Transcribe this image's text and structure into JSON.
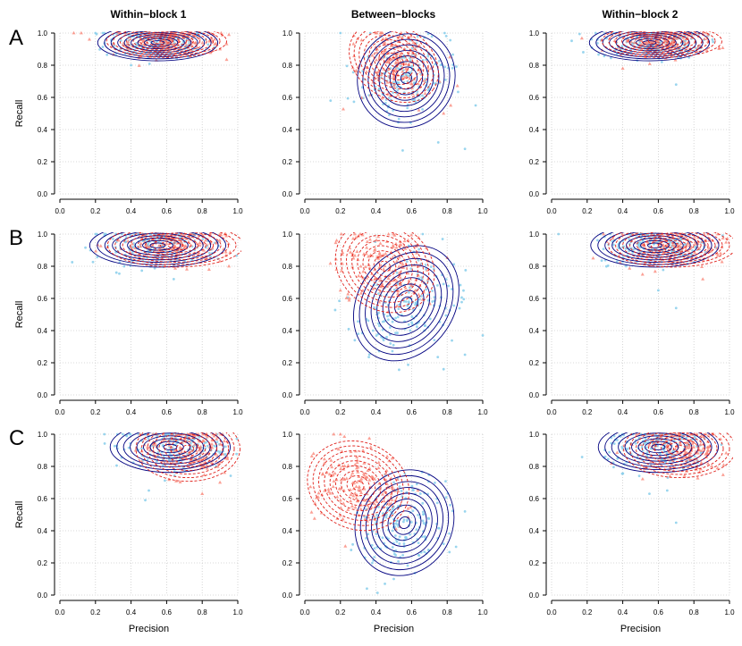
{
  "figure": {
    "column_titles": [
      "Within−block 1",
      "Between−blocks",
      "Within−block 2"
    ],
    "row_labels": [
      "A",
      "B",
      "C"
    ],
    "xlabel": "Precision",
    "ylabel": "Recall",
    "tick_labels": [
      "0.0",
      "0.2",
      "0.4",
      "0.6",
      "0.8",
      "1.0"
    ],
    "colors": {
      "series_a_points": "#87CEEB",
      "series_a_contour": "#000080",
      "series_b_points": "#FA8072",
      "series_b_contour": "#E0201A",
      "grid": "#cccccc",
      "axis": "#000000"
    }
  },
  "chart_data": [
    {
      "type": "scatter",
      "panel": "A-Within-block 1",
      "xlabel": "",
      "ylabel": "Recall",
      "xlim": [
        0,
        1
      ],
      "ylim": [
        0,
        1
      ],
      "grid": true,
      "series": [
        {
          "marker": "point",
          "color": "#87CEEB",
          "contour": "solid",
          "center": [
            0.55,
            0.94
          ],
          "spread": [
            0.15,
            0.05
          ],
          "clip_top": true,
          "outliers": [
            [
              0.4,
              0.8
            ],
            [
              0.3,
              0.99
            ],
            [
              0.2,
              1.0
            ],
            [
              0.25,
              1.0
            ]
          ]
        },
        {
          "marker": "triangle",
          "color": "#FA8072",
          "contour": "dashed",
          "center": [
            0.6,
            0.95
          ],
          "spread": [
            0.15,
            0.045
          ],
          "clip_top": true,
          "outliers": [
            [
              0.12,
              1.0
            ],
            [
              0.9,
              0.9
            ],
            [
              0.95,
              0.99
            ]
          ]
        }
      ]
    },
    {
      "type": "scatter",
      "panel": "A-Between-blocks",
      "xlabel": "",
      "ylabel": "",
      "xlim": [
        0,
        1
      ],
      "ylim": [
        0,
        1
      ],
      "grid": true,
      "series": [
        {
          "marker": "point",
          "color": "#87CEEB",
          "contour": "solid",
          "center": [
            0.57,
            0.72
          ],
          "spread": [
            0.12,
            0.14
          ],
          "rotation": -0.6,
          "clip_top": true,
          "outliers": [
            [
              0.55,
              0.27
            ],
            [
              0.75,
              0.32
            ],
            [
              0.9,
              0.28
            ],
            [
              0.96,
              0.55
            ],
            [
              0.2,
              1.0
            ]
          ]
        },
        {
          "marker": "triangle",
          "color": "#FA8072",
          "contour": "dashed",
          "center": [
            0.5,
            0.82
          ],
          "spread": [
            0.12,
            0.1
          ],
          "rotation": -0.6,
          "clip_top": true,
          "outliers": [
            [
              0.78,
              0.5
            ],
            [
              0.82,
              0.55
            ]
          ]
        }
      ]
    },
    {
      "type": "scatter",
      "panel": "A-Within-block 2",
      "xlabel": "",
      "ylabel": "",
      "xlim": [
        0,
        1
      ],
      "ylim": [
        0,
        1
      ],
      "grid": true,
      "series": [
        {
          "marker": "point",
          "color": "#87CEEB",
          "contour": "solid",
          "center": [
            0.55,
            0.94
          ],
          "spread": [
            0.15,
            0.05
          ],
          "clip_top": true,
          "outliers": [
            [
              0.7,
              0.68
            ],
            [
              0.62,
              0.82
            ]
          ]
        },
        {
          "marker": "triangle",
          "color": "#FA8072",
          "contour": "dashed",
          "center": [
            0.62,
            0.95
          ],
          "spread": [
            0.15,
            0.045
          ],
          "clip_top": true,
          "outliers": [
            [
              0.4,
              0.78
            ],
            [
              0.88,
              0.99
            ]
          ]
        }
      ]
    },
    {
      "type": "scatter",
      "panel": "B-Within-block 1",
      "xlabel": "",
      "ylabel": "Recall",
      "xlim": [
        0,
        1
      ],
      "ylim": [
        0,
        1
      ],
      "grid": true,
      "series": [
        {
          "marker": "point",
          "color": "#87CEEB",
          "contour": "solid",
          "center": [
            0.55,
            0.93
          ],
          "spread": [
            0.17,
            0.06
          ],
          "clip_top": true,
          "outliers": [
            [
              0.64,
              0.72
            ],
            [
              0.2,
              1.0
            ]
          ]
        },
        {
          "marker": "triangle",
          "color": "#FA8072",
          "contour": "dashed",
          "center": [
            0.65,
            0.93
          ],
          "spread": [
            0.17,
            0.06
          ],
          "clip_top": true,
          "outliers": [
            [
              0.95,
              0.8
            ]
          ]
        }
      ]
    },
    {
      "type": "scatter",
      "panel": "B-Between-blocks",
      "xlabel": "",
      "ylabel": "",
      "xlim": [
        0,
        1
      ],
      "ylim": [
        0,
        1
      ],
      "grid": true,
      "series": [
        {
          "marker": "point",
          "color": "#87CEEB",
          "contour": "solid",
          "center": [
            0.57,
            0.57
          ],
          "spread": [
            0.12,
            0.17
          ],
          "rotation": -0.6,
          "clip_top": true,
          "outliers": [
            [
              0.78,
              0.16
            ],
            [
              0.9,
              0.25
            ],
            [
              1.0,
              0.37
            ],
            [
              0.3,
              0.38
            ]
          ]
        },
        {
          "marker": "triangle",
          "color": "#FA8072",
          "contour": "dashed",
          "center": [
            0.45,
            0.8
          ],
          "spread": [
            0.13,
            0.12
          ],
          "rotation": -0.6,
          "clip_top": true,
          "outliers": [
            [
              0.2,
              0.65
            ],
            [
              0.25,
              0.6
            ]
          ]
        }
      ]
    },
    {
      "type": "scatter",
      "panel": "B-Within-block 2",
      "xlabel": "",
      "ylabel": "",
      "xlim": [
        0,
        1
      ],
      "ylim": [
        0,
        1
      ],
      "grid": true,
      "series": [
        {
          "marker": "point",
          "color": "#87CEEB",
          "contour": "solid",
          "center": [
            0.58,
            0.93
          ],
          "spread": [
            0.16,
            0.06
          ],
          "clip_top": true,
          "outliers": [
            [
              0.7,
              0.54
            ],
            [
              0.6,
              0.65
            ]
          ]
        },
        {
          "marker": "triangle",
          "color": "#FA8072",
          "contour": "dashed",
          "center": [
            0.68,
            0.93
          ],
          "spread": [
            0.16,
            0.06
          ],
          "clip_top": true,
          "outliers": [
            [
              0.85,
              0.72
            ],
            [
              0.95,
              0.88
            ]
          ]
        }
      ]
    },
    {
      "type": "scatter",
      "panel": "C-Within-block 1",
      "xlabel": "Precision",
      "ylabel": "Recall",
      "xlim": [
        0,
        1
      ],
      "ylim": [
        0,
        1
      ],
      "grid": true,
      "series": [
        {
          "marker": "point",
          "color": "#87CEEB",
          "contour": "solid",
          "center": [
            0.62,
            0.92
          ],
          "spread": [
            0.15,
            0.07
          ],
          "clip_top": true,
          "outliers": [
            [
              0.48,
              0.59
            ],
            [
              0.5,
              0.65
            ],
            [
              0.45,
              0.8
            ],
            [
              0.25,
              1.0
            ]
          ]
        },
        {
          "marker": "triangle",
          "color": "#FA8072",
          "contour": "dashed",
          "center": [
            0.72,
            0.91
          ],
          "spread": [
            0.13,
            0.09
          ],
          "clip_top": true,
          "outliers": [
            [
              0.8,
              0.63
            ],
            [
              0.9,
              0.7
            ],
            [
              0.95,
              0.95
            ]
          ]
        }
      ]
    },
    {
      "type": "scatter",
      "panel": "C-Between-blocks",
      "xlabel": "Precision",
      "ylabel": "",
      "xlim": [
        0,
        1
      ],
      "ylim": [
        0,
        1
      ],
      "grid": true,
      "series": [
        {
          "marker": "point",
          "color": "#87CEEB",
          "contour": "solid",
          "center": [
            0.56,
            0.45
          ],
          "spread": [
            0.12,
            0.15
          ],
          "rotation": -0.5,
          "clip_top": false,
          "outliers": [
            [
              0.45,
              0.07
            ],
            [
              0.5,
              0.1
            ],
            [
              0.85,
              0.3
            ],
            [
              0.9,
              0.52
            ]
          ]
        },
        {
          "marker": "triangle",
          "color": "#FA8072",
          "contour": "dashed",
          "center": [
            0.3,
            0.68
          ],
          "spread": [
            0.13,
            0.12
          ],
          "rotation": -0.4,
          "clip_top": true,
          "outliers": [
            [
              0.2,
              1.0
            ],
            [
              0.1,
              0.75
            ]
          ]
        }
      ]
    },
    {
      "type": "scatter",
      "panel": "C-Within-block 2",
      "xlabel": "Precision",
      "ylabel": "",
      "xlim": [
        0,
        1
      ],
      "ylim": [
        0,
        1
      ],
      "grid": true,
      "series": [
        {
          "marker": "point",
          "color": "#87CEEB",
          "contour": "solid",
          "center": [
            0.6,
            0.92
          ],
          "spread": [
            0.15,
            0.07
          ],
          "clip_top": true,
          "outliers": [
            [
              0.7,
              0.45
            ],
            [
              0.55,
              0.63
            ],
            [
              0.65,
              0.65
            ]
          ]
        },
        {
          "marker": "triangle",
          "color": "#FA8072",
          "contour": "dashed",
          "center": [
            0.72,
            0.91
          ],
          "spread": [
            0.14,
            0.08
          ],
          "clip_top": true,
          "outliers": [
            [
              0.9,
              0.8
            ],
            [
              0.95,
              0.97
            ]
          ]
        }
      ]
    }
  ]
}
